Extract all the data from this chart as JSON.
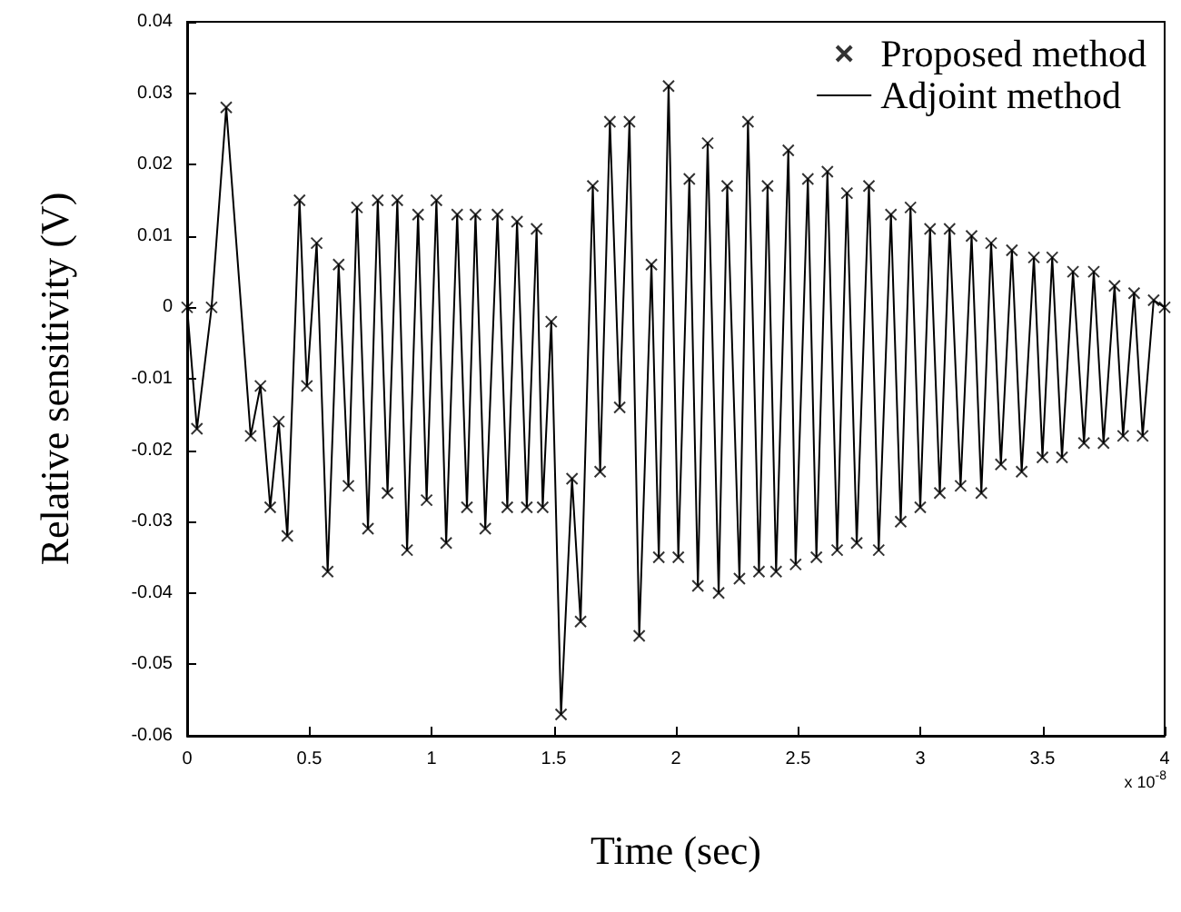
{
  "chart_data": {
    "type": "line",
    "xlabel": "Time (sec)",
    "ylabel": "Relative sensitivity (V)",
    "annotations": [
      "x 10$^{-8}$"
    ],
    "x": [
      0,
      0.04,
      0.1,
      0.16,
      0.26,
      0.3,
      0.34,
      0.375,
      0.41,
      0.46,
      0.49,
      0.53,
      0.575,
      0.62,
      0.66,
      0.695,
      0.74,
      0.78,
      0.82,
      0.86,
      0.9,
      0.945,
      0.98,
      1.02,
      1.06,
      1.105,
      1.145,
      1.18,
      1.22,
      1.27,
      1.31,
      1.35,
      1.39,
      1.43,
      1.455,
      1.49,
      1.53,
      1.575,
      1.61,
      1.66,
      1.69,
      1.73,
      1.77,
      1.81,
      1.85,
      1.9,
      1.93,
      1.97,
      2.01,
      2.055,
      2.09,
      2.13,
      2.175,
      2.21,
      2.26,
      2.295,
      2.34,
      2.375,
      2.41,
      2.46,
      2.49,
      2.54,
      2.575,
      2.62,
      2.66,
      2.7,
      2.74,
      2.79,
      2.83,
      2.88,
      2.92,
      2.96,
      3.0,
      3.04,
      3.08,
      3.12,
      3.165,
      3.21,
      3.25,
      3.29,
      3.33,
      3.375,
      3.415,
      3.465,
      3.5,
      3.54,
      3.58,
      3.625,
      3.67,
      3.71,
      3.75,
      3.795,
      3.83,
      3.875,
      3.91,
      3.955,
      4.0
    ],
    "series": [
      {
        "name": "Proposed method",
        "type": "scatter",
        "marker": "cross",
        "color": "#000000",
        "values": [
          0,
          -0.017,
          0,
          0.028,
          -0.018,
          -0.011,
          -0.028,
          -0.016,
          -0.032,
          0.015,
          -0.011,
          0.009,
          -0.037,
          0.006,
          -0.025,
          0.014,
          -0.031,
          0.015,
          -0.026,
          0.015,
          -0.034,
          0.013,
          -0.027,
          0.015,
          -0.033,
          0.013,
          -0.028,
          0.013,
          -0.031,
          0.013,
          -0.028,
          0.012,
          -0.028,
          0.011,
          -0.028,
          -0.002,
          -0.057,
          -0.024,
          -0.044,
          0.017,
          -0.023,
          0.026,
          -0.014,
          0.026,
          -0.046,
          0.006,
          -0.035,
          0.031,
          -0.035,
          0.018,
          -0.039,
          0.023,
          -0.04,
          0.017,
          -0.038,
          0.026,
          -0.037,
          0.017,
          -0.037,
          0.022,
          -0.036,
          0.018,
          -0.035,
          0.019,
          -0.034,
          0.016,
          -0.033,
          0.017,
          -0.034,
          0.013,
          -0.03,
          0.014,
          -0.028,
          0.011,
          -0.026,
          0.011,
          -0.025,
          0.01,
          -0.026,
          0.009,
          -0.022,
          0.008,
          -0.023,
          0.007,
          -0.021,
          0.007,
          -0.021,
          0.005,
          -0.019,
          0.005,
          -0.019,
          0.003,
          -0.018,
          0.002,
          -0.018,
          0.001,
          0
        ]
      },
      {
        "name": "Adjoint method",
        "marker": "none",
        "color": "#000000",
        "values": [
          0,
          -0.017,
          0,
          0.028,
          -0.018,
          -0.011,
          -0.028,
          -0.016,
          -0.032,
          0.015,
          -0.011,
          0.009,
          -0.037,
          0.006,
          -0.025,
          0.014,
          -0.031,
          0.015,
          -0.026,
          0.015,
          -0.034,
          0.013,
          -0.027,
          0.015,
          -0.033,
          0.013,
          -0.028,
          0.013,
          -0.031,
          0.013,
          -0.028,
          0.012,
          -0.028,
          0.011,
          -0.028,
          -0.002,
          -0.057,
          -0.024,
          -0.044,
          0.017,
          -0.023,
          0.026,
          -0.014,
          0.026,
          -0.046,
          0.006,
          -0.035,
          0.031,
          -0.035,
          0.018,
          -0.039,
          0.023,
          -0.04,
          0.017,
          -0.038,
          0.026,
          -0.037,
          0.017,
          -0.037,
          0.022,
          -0.036,
          0.018,
          -0.035,
          0.019,
          -0.034,
          0.016,
          -0.033,
          0.017,
          -0.034,
          0.013,
          -0.03,
          0.014,
          -0.028,
          0.011,
          -0.026,
          0.011,
          -0.025,
          0.01,
          -0.026,
          0.009,
          -0.022,
          0.008,
          -0.023,
          0.007,
          -0.021,
          0.007,
          -0.021,
          0.005,
          -0.019,
          0.005,
          -0.019,
          0.003,
          -0.018,
          0.002,
          -0.018,
          0.001,
          0
        ]
      }
    ],
    "xlim": [
      0,
      4
    ],
    "xticks": [
      0,
      0.5,
      1,
      1.5,
      2,
      2.5,
      3,
      3.5,
      4
    ],
    "ylim": [
      -0.06,
      0.04
    ],
    "yticks": [
      -0.06,
      -0.05,
      -0.04,
      -0.03,
      -0.02,
      -0.01,
      0,
      0.01,
      0.02,
      0.03,
      0.04
    ],
    "grid": false,
    "legend": "top right",
    "line_style": "solid"
  }
}
